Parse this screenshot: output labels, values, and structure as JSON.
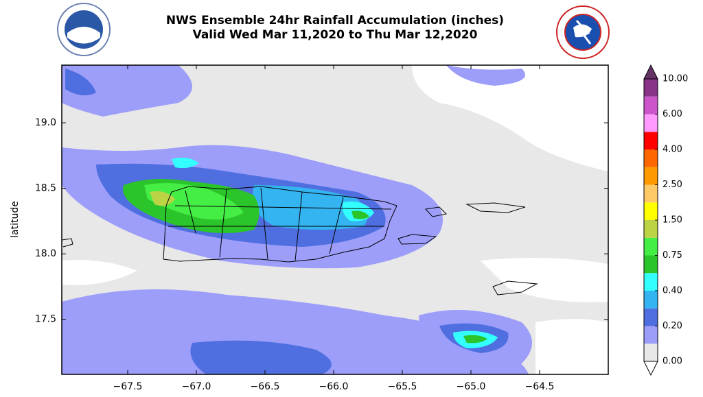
{
  "chart_data": {
    "type": "map",
    "title": [
      "NWS Ensemble 24hr Rainfall Accumulation (inches)",
      "Valid Wed Mar 11,2020 to Thu Mar 12,2020"
    ],
    "ylabel": "latitude",
    "xlim": [
      -67.98,
      -64.0
    ],
    "ylim": [
      17.08,
      19.44
    ],
    "xticks": [
      {
        "value": -67.5,
        "label": "−67.5"
      },
      {
        "value": -67.0,
        "label": "−67.0"
      },
      {
        "value": -66.5,
        "label": "−66.5"
      },
      {
        "value": -66.0,
        "label": "−66.0"
      },
      {
        "value": -65.5,
        "label": "−65.5"
      },
      {
        "value": -65.0,
        "label": "−65.0"
      },
      {
        "value": -64.5,
        "label": "−64.5"
      }
    ],
    "yticks": [
      {
        "value": 17.5,
        "label": "17.5"
      },
      {
        "value": 18.0,
        "label": "18.0"
      },
      {
        "value": 18.5,
        "label": "18.5"
      },
      {
        "value": 19.0,
        "label": "19.0"
      }
    ],
    "colorbar": {
      "levels": [
        {
          "value": 0,
          "label": "0.00"
        },
        {
          "value": 0.2,
          "label": "0.20"
        },
        {
          "value": 0.4,
          "label": "0.40"
        },
        {
          "value": 0.75,
          "label": "0.75"
        },
        {
          "value": 1.5,
          "label": "1.50"
        },
        {
          "value": 2.5,
          "label": "2.50"
        },
        {
          "value": 4,
          "label": "4.00"
        },
        {
          "value": 6,
          "label": "6.00"
        },
        {
          "value": 10,
          "label": "10.00"
        }
      ],
      "colors": [
        [
          "#e8e8e8",
          "#9d9dfa"
        ],
        [
          "#4f6fe0",
          "#35b4f2"
        ],
        [
          "#33ffff",
          "#2bc42b"
        ],
        [
          "#44ee44",
          "#bcd444"
        ],
        [
          "#ffff00",
          "#ffc866"
        ],
        [
          "#ff9900",
          "#ff6600"
        ],
        [
          "#ff0000",
          "#ff99ff"
        ],
        [
          "#cc55cc",
          "#883388"
        ]
      ],
      "under_color": "#ffffff",
      "over_color": "#663366"
    }
  }
}
